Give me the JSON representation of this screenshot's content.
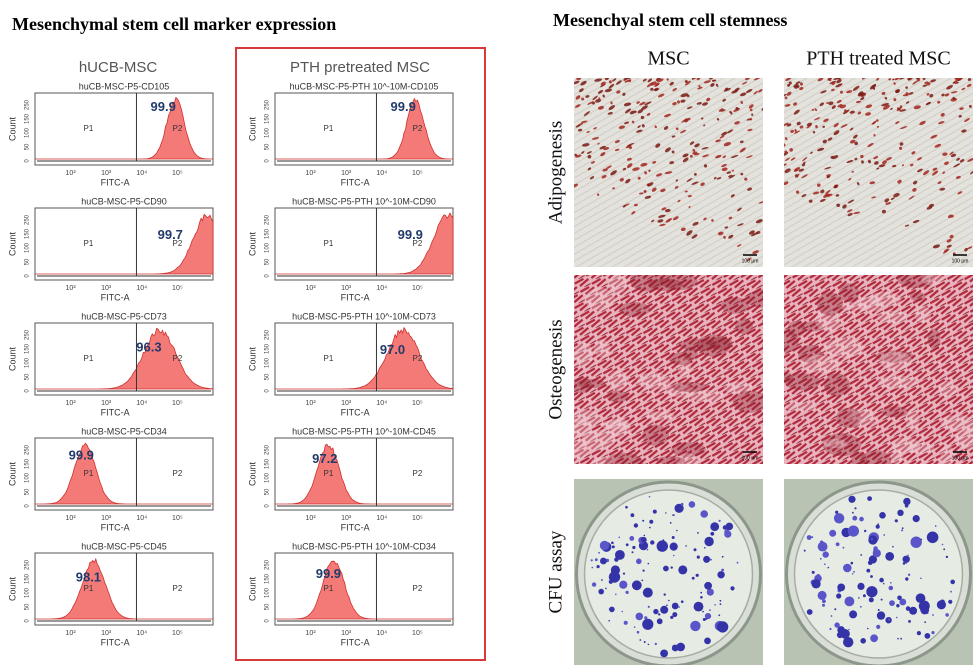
{
  "left": {
    "title": "Mesenchymal stem cell marker expression",
    "gates": [
      "P1",
      "P2"
    ],
    "y_axis_label": "Count",
    "x_axis_label": "FITC-A",
    "x_ticks": [
      "10²",
      "10³",
      "10⁴",
      "10⁵"
    ],
    "y_ticks": [
      "0",
      "50",
      "100",
      "150",
      "250"
    ],
    "columns": [
      {
        "header": "hUCB-MSC",
        "panels": [
          {
            "sample": "huCB-MSC-P5-CD105",
            "percent": "99.9"
          },
          {
            "sample": "huCB-MSC-P5-CD90",
            "percent": "99.7"
          },
          {
            "sample": "huCB-MSC-P5-CD73",
            "percent": "96.3"
          },
          {
            "sample": "huCB-MSC-P5-CD34",
            "percent": "99.9"
          },
          {
            "sample": "huCB-MSC-P5-CD45",
            "percent": "98.1"
          }
        ]
      },
      {
        "header": "PTH pretreated MSC",
        "panels": [
          {
            "sample": "huCB-MSC-P5-PTH 10^-10M-CD105",
            "percent": "99.9"
          },
          {
            "sample": "huCB-MSC-P5-PTH 10^-10M-CD90",
            "percent": "99.9"
          },
          {
            "sample": "huCB-MSC-P5-PTH 10^-10M-CD73",
            "percent": "97.0"
          },
          {
            "sample": "huCB-MSC-P5-PTH 10^-10M-CD45",
            "percent": "97.2"
          },
          {
            "sample": "huCB-MSC-P5-PTH 10^-10M-CD34",
            "percent": "99.9"
          }
        ]
      }
    ]
  },
  "right": {
    "title": "Mesenchyal stem cell stemness",
    "columns": [
      "MSC",
      "PTH treated MSC"
    ],
    "rows": [
      "Adipogenesis",
      "Osteogenesis",
      "CFU  assay"
    ],
    "scale_bar": "100 μm"
  }
}
